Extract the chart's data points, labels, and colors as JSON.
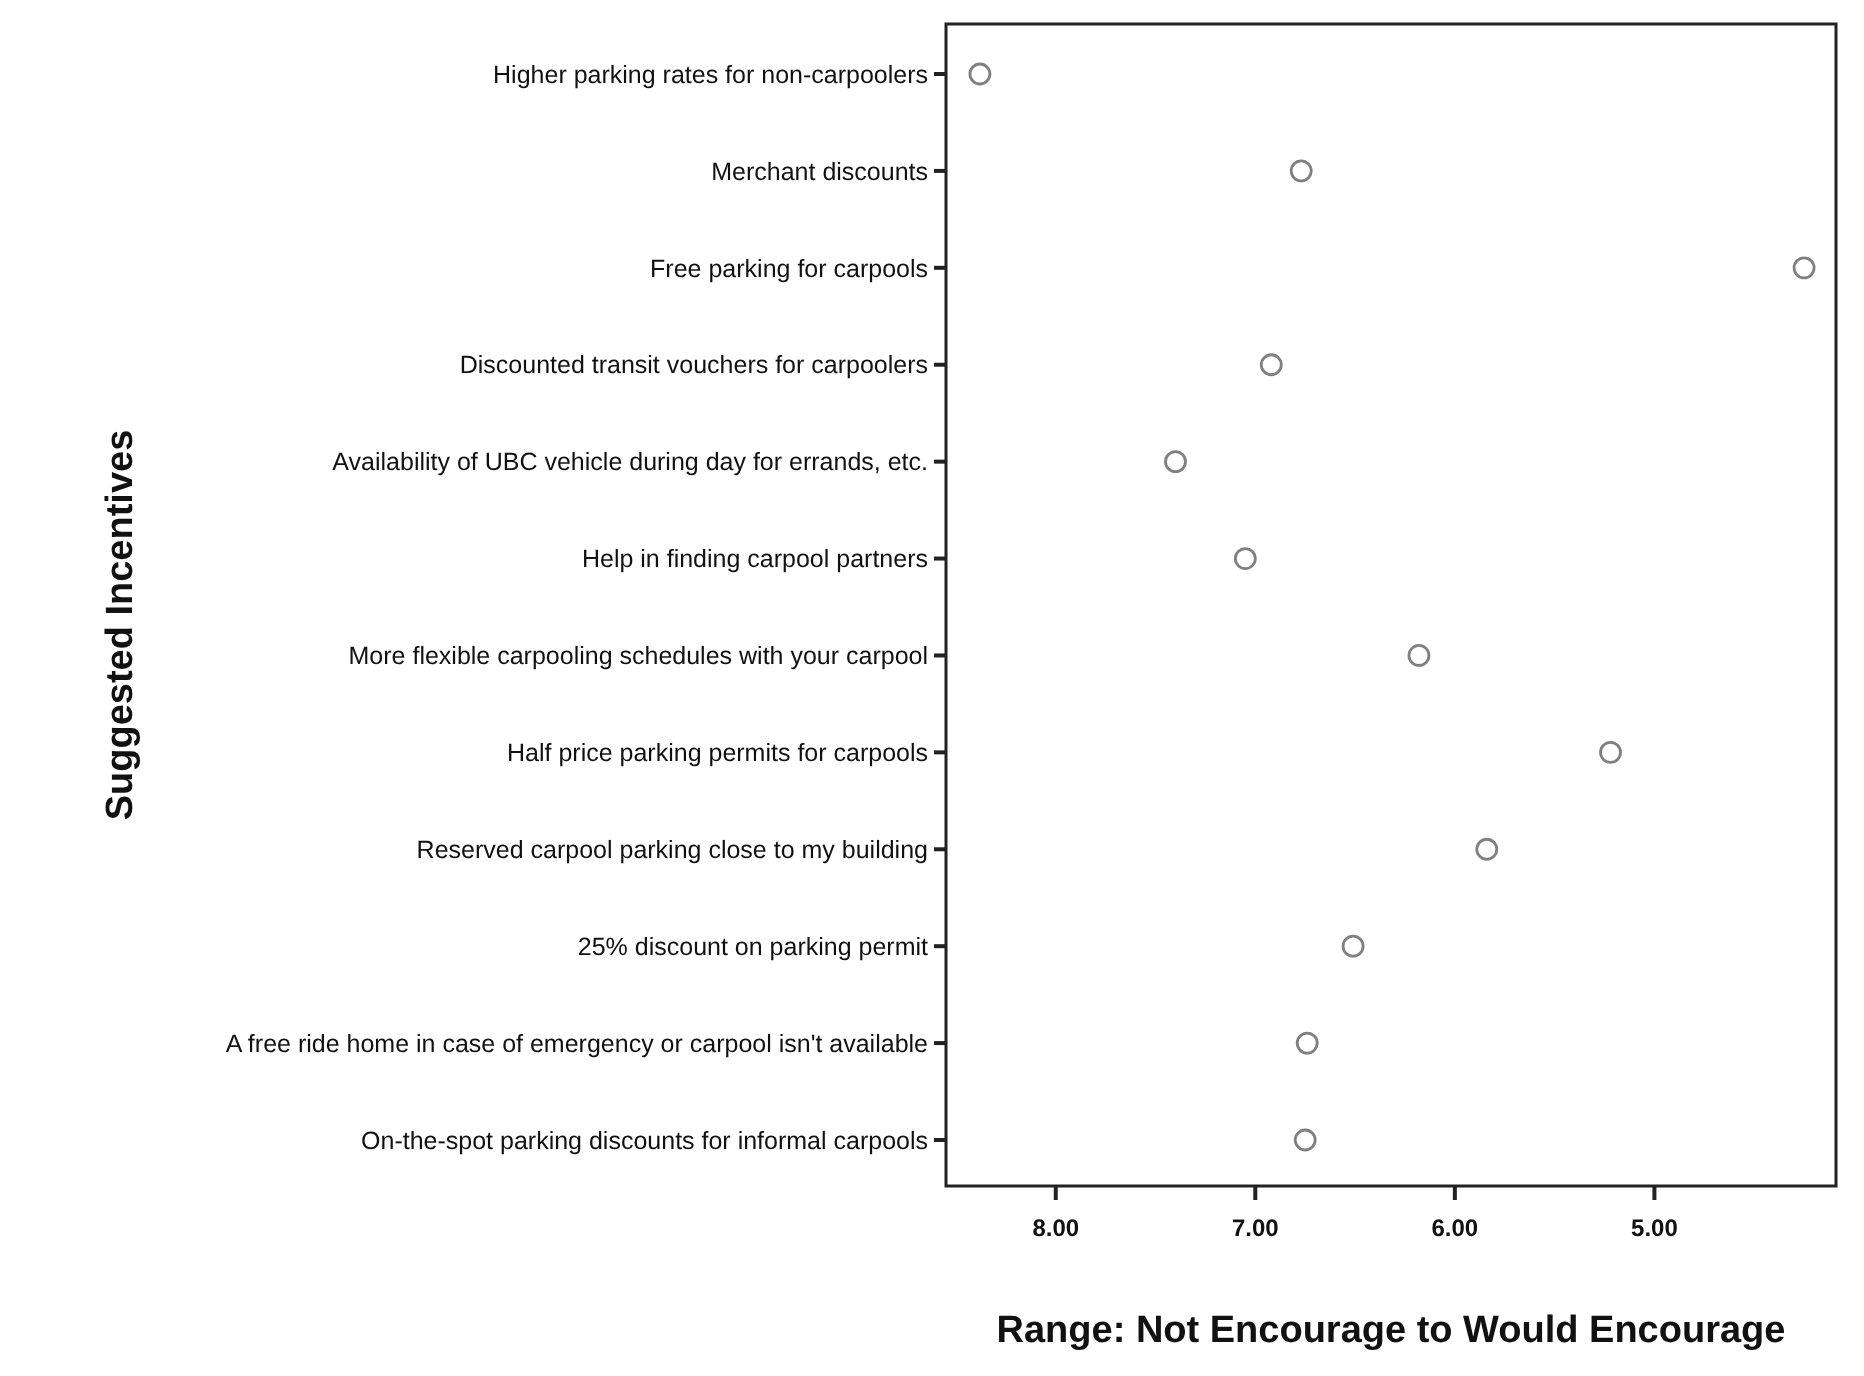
{
  "chart_data": {
    "type": "scatter",
    "xlabel": "Range: Not Encourage to Would Encourage",
    "ylabel": "Suggested Incentives",
    "categories": [
      "Higher parking rates for non-carpoolers",
      "Merchant discounts",
      "Free parking for carpools",
      "Discounted transit vouchers for carpoolers",
      "Availability of UBC vehicle during day for errands, etc.",
      "Help in finding carpool partners",
      "More flexible carpooling schedules with your carpool",
      "Half price parking permits for carpools",
      "Reserved carpool parking close to my building",
      "25% discount on parking permit",
      "A free ride home in case of emergency or carpool isn't available",
      "On-the-spot parking discounts for informal carpools"
    ],
    "orientation": "horizontal",
    "series": [
      {
        "color": "#808080",
        "values": [
          8.38,
          6.77,
          4.25,
          6.92,
          7.4,
          7.05,
          6.18,
          5.22,
          5.84,
          6.51,
          6.74,
          6.75
        ]
      }
    ],
    "xlim": [
      8.55,
      4.09
    ],
    "xticks": [
      {
        "value": 8,
        "label": "8.00"
      },
      {
        "value": 7,
        "label": "7.00"
      },
      {
        "value": 6,
        "label": "6.00"
      },
      {
        "value": 5,
        "label": "5.00"
      }
    ],
    "marker": "circle",
    "grid": false
  }
}
